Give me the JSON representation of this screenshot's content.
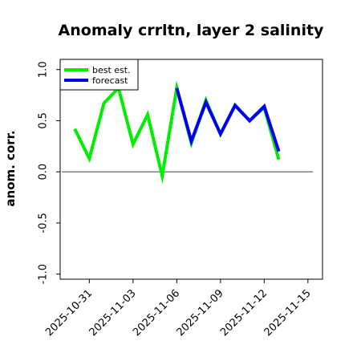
{
  "chart_data": {
    "type": "line",
    "title": "Anomaly crrltn, layer 2 salinity",
    "xlabel": "",
    "ylabel": "anom. corr.",
    "xlim": [
      "2025-10-29",
      "2025-11-16"
    ],
    "ylim": [
      -1.05,
      1.1
    ],
    "yticks": [
      "-1.0",
      "-0.5",
      "0.0",
      "0.5",
      "1.0"
    ],
    "yticks_values": [
      -1.0,
      -0.5,
      0.0,
      0.5,
      1.0
    ],
    "xticks": [
      "2025-10-31",
      "2025-11-03",
      "2025-11-06",
      "2025-11-09",
      "2025-11-12",
      "2025-11-15"
    ],
    "highlighted_xtick": "2025-11-06",
    "highlight_color": "#2ca02c",
    "reference_line": 0.0,
    "grid": false,
    "legend_position": "top-left",
    "series": [
      {
        "name": "best est.",
        "color": "#00ee00",
        "x": [
          "2025-10-30",
          "2025-10-31",
          "2025-11-01",
          "2025-11-02",
          "2025-11-03",
          "2025-11-04",
          "2025-11-05",
          "2025-11-06",
          "2025-11-07",
          "2025-11-08",
          "2025-11-09",
          "2025-11-10",
          "2025-11-11",
          "2025-11-12",
          "2025-11-13"
        ],
        "values": [
          0.42,
          0.13,
          0.67,
          0.82,
          0.27,
          0.56,
          -0.04,
          0.82,
          0.28,
          0.7,
          0.37,
          0.65,
          0.5,
          0.63,
          0.12
        ]
      },
      {
        "name": "forecast",
        "color": "#0000ee",
        "x": [
          "2025-11-06",
          "2025-11-07",
          "2025-11-08",
          "2025-11-09",
          "2025-11-10",
          "2025-11-11",
          "2025-11-12",
          "2025-11-13"
        ],
        "values": [
          0.82,
          0.3,
          0.68,
          0.37,
          0.65,
          0.5,
          0.64,
          0.2
        ]
      }
    ]
  }
}
